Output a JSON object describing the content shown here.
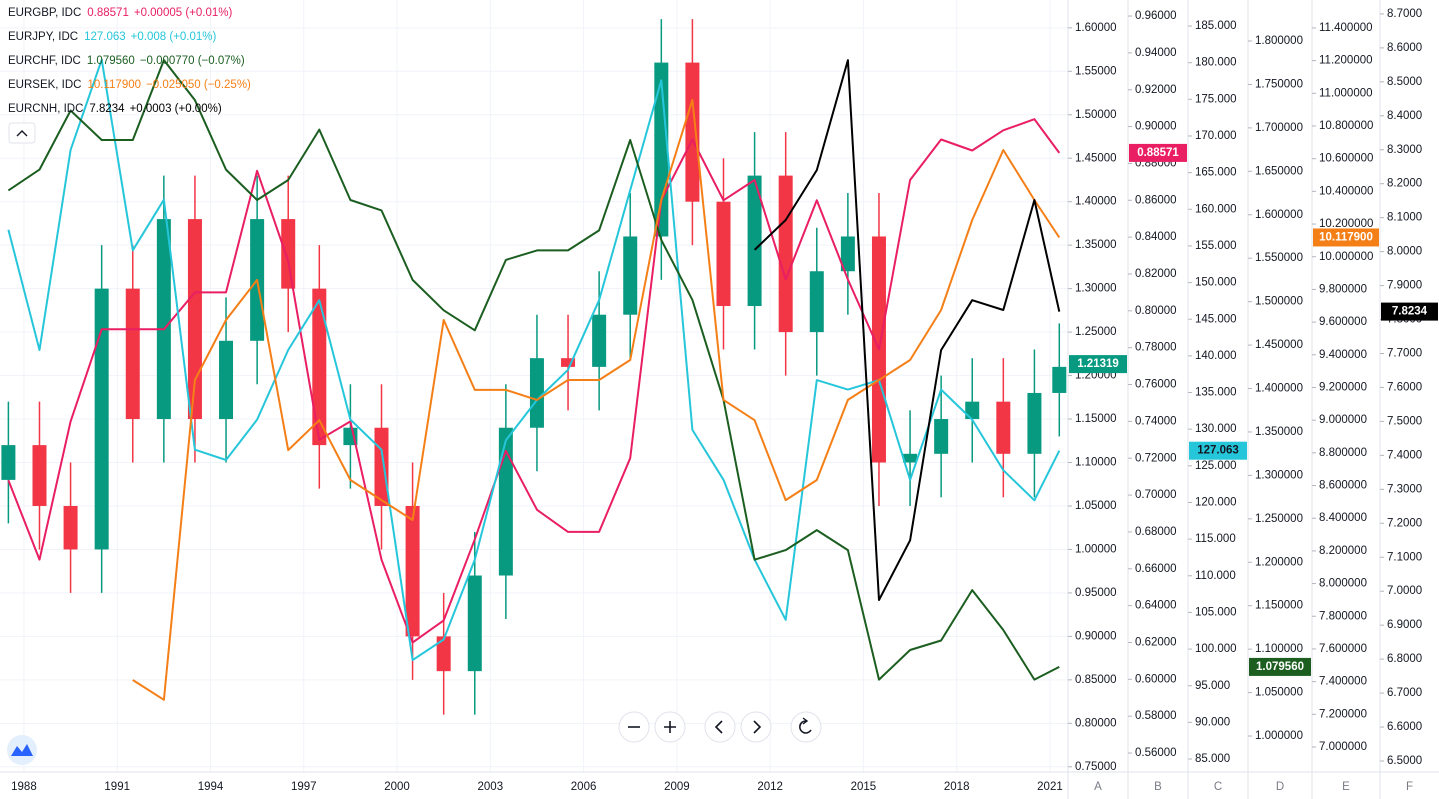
{
  "chart_data": {
    "type": "candlestick",
    "x": [
      1987.5,
      1988.5,
      1989.5,
      1990.5,
      1991.5,
      1992.5,
      1993.5,
      1994.5,
      1995.5,
      1996.5,
      1997.5,
      1998.5,
      1999.5,
      2000.5,
      2001.5,
      2002.5,
      2003.5,
      2004.5,
      2005.5,
      2006.5,
      2007.5,
      2008.5,
      2009.5,
      2010.5,
      2011.5,
      2012.5,
      2013.5,
      2014.5,
      2015.5,
      2016.5,
      2017.5,
      2018.5,
      2019.5,
      2020.5,
      2021.3
    ],
    "xlim": [
      1987.23,
      2021.58
    ],
    "xticks": [
      1988,
      1991,
      1994,
      1997,
      2000,
      2003,
      2006,
      2009,
      2012,
      2015,
      2018,
      2021
    ],
    "grid": true,
    "price": {
      "up_color": "#089981",
      "down_color": "#f23645",
      "axis_letter": "A",
      "open": [
        1.08,
        1.12,
        1.05,
        1,
        1.3,
        1.15,
        1.38,
        1.15,
        1.24,
        1.38,
        1.3,
        1.12,
        1.14,
        1.05,
        0.9,
        0.86,
        0.97,
        1.14,
        1.22,
        1.21,
        1.27,
        1.36,
        1.56,
        1.4,
        1.28,
        1.43,
        1.25,
        1.32,
        1.36,
        1.1,
        1.11,
        1.15,
        1.17,
        1.11,
        1.18
      ],
      "high": [
        1.17,
        1.17,
        1.1,
        1.35,
        1.35,
        1.43,
        1.43,
        1.29,
        1.43,
        1.43,
        1.35,
        1.19,
        1.19,
        1.1,
        0.95,
        1.02,
        1.19,
        1.27,
        1.27,
        1.32,
        1.41,
        1.61,
        1.61,
        1.45,
        1.48,
        1.48,
        1.37,
        1.41,
        1.41,
        1.16,
        1.2,
        1.22,
        1.22,
        1.23,
        1.26
      ],
      "low": [
        1.03,
        1,
        0.95,
        0.95,
        1.1,
        1.1,
        1.1,
        1.1,
        1.19,
        1.25,
        1.07,
        1.07,
        1,
        0.85,
        0.81,
        0.81,
        0.92,
        1.09,
        1.16,
        1.16,
        1.22,
        1.31,
        1.35,
        1.23,
        1.23,
        1.2,
        1.2,
        1.27,
        1.05,
        1.05,
        1.06,
        1.1,
        1.06,
        1.06,
        1.13
      ],
      "close": [
        1.12,
        1.05,
        1,
        1.3,
        1.15,
        1.38,
        1.15,
        1.24,
        1.38,
        1.3,
        1.12,
        1.14,
        1.05,
        0.9,
        0.86,
        0.97,
        1.14,
        1.22,
        1.21,
        1.27,
        1.36,
        1.56,
        1.4,
        1.28,
        1.43,
        1.25,
        1.32,
        1.36,
        1.1,
        1.11,
        1.15,
        1.17,
        1.11,
        1.18,
        1.21
      ],
      "last": 1.21319,
      "ylim": [
        0.744,
        1.632
      ],
      "yticks": [
        {
          "value": 0.75,
          "label": "0.75000"
        },
        {
          "value": 0.8,
          "label": "0.80000"
        },
        {
          "value": 0.85,
          "label": "0.85000"
        },
        {
          "value": 0.9,
          "label": "0.90000"
        },
        {
          "value": 0.95,
          "label": "0.95000"
        },
        {
          "value": 1,
          "label": "1.00000"
        },
        {
          "value": 1.05,
          "label": "1.05000"
        },
        {
          "value": 1.1,
          "label": "1.10000"
        },
        {
          "value": 1.15,
          "label": "1.15000"
        },
        {
          "value": 1.2,
          "label": "1.20000"
        },
        {
          "value": 1.25,
          "label": "1.25000"
        },
        {
          "value": 1.3,
          "label": "1.30000"
        },
        {
          "value": 1.35,
          "label": "1.35000"
        },
        {
          "value": 1.4,
          "label": "1.40000"
        },
        {
          "value": 1.45,
          "label": "1.45000"
        },
        {
          "value": 1.5,
          "label": "1.50000"
        },
        {
          "value": 1.55,
          "label": "1.55000"
        },
        {
          "value": 1.6,
          "label": "1.60000"
        }
      ]
    },
    "series": [
      {
        "name": "EURGBP, IDC",
        "color": "#e91e63",
        "axis_letter": "B",
        "change": "+0.00005 (+0.01%)",
        "last": 0.88571,
        "values": [
          0.708,
          0.665,
          0.74,
          0.79,
          0.79,
          0.79,
          0.81,
          0.81,
          0.876,
          0.827,
          0.73,
          0.74,
          0.665,
          0.62,
          0.632,
          0.676,
          0.724,
          0.692,
          0.68,
          0.68,
          0.72,
          0.86,
          0.893,
          0.86,
          0.871,
          0.817,
          0.86,
          0.817,
          0.779,
          0.871,
          0.893,
          0.887,
          0.898,
          0.904,
          0.88571
        ],
        "ylim": [
          0.5497,
          0.9687
        ],
        "yticks": [
          {
            "value": 0.56,
            "label": "0.56000"
          },
          {
            "value": 0.58,
            "label": "0.58000"
          },
          {
            "value": 0.6,
            "label": "0.60000"
          },
          {
            "value": 0.62,
            "label": "0.62000"
          },
          {
            "value": 0.64,
            "label": "0.64000"
          },
          {
            "value": 0.66,
            "label": "0.66000"
          },
          {
            "value": 0.68,
            "label": "0.68000"
          },
          {
            "value": 0.7,
            "label": "0.70000"
          },
          {
            "value": 0.72,
            "label": "0.72000"
          },
          {
            "value": 0.74,
            "label": "0.74000"
          },
          {
            "value": 0.76,
            "label": "0.76000"
          },
          {
            "value": 0.78,
            "label": "0.78000"
          },
          {
            "value": 0.8,
            "label": "0.80000"
          },
          {
            "value": 0.82,
            "label": "0.82000"
          },
          {
            "value": 0.84,
            "label": "0.84000"
          },
          {
            "value": 0.86,
            "label": "0.86000"
          },
          {
            "value": 0.88,
            "label": "0.88000"
          },
          {
            "value": 0.9,
            "label": "0.90000"
          },
          {
            "value": 0.92,
            "label": "0.92000"
          },
          {
            "value": 0.94,
            "label": "0.94000"
          },
          {
            "value": 0.96,
            "label": "0.96000"
          }
        ]
      },
      {
        "name": "EURJPY, IDC",
        "color": "#26c6da",
        "axis_letter": "C",
        "change": "+0.008 (+0.01%)",
        "last": 127.063,
        "values": [
          157.2,
          140.8,
          168.1,
          180.4,
          154.4,
          161.3,
          127.2,
          125.8,
          131.3,
          140.8,
          147.6,
          131.3,
          127.2,
          98.5,
          101.3,
          112.2,
          128.5,
          134,
          138.1,
          147.6,
          162.6,
          177.6,
          129.9,
          123.1,
          112.2,
          104,
          136.7,
          135.4,
          136.7,
          123.1,
          135.4,
          131.3,
          124.4,
          120.3,
          127.063
        ],
        "ylim": [
          83.23,
          188.55
        ],
        "yticks": [
          {
            "value": 85,
            "label": "85.000"
          },
          {
            "value": 90,
            "label": "90.000"
          },
          {
            "value": 95,
            "label": "95.000"
          },
          {
            "value": 100,
            "label": "100.000"
          },
          {
            "value": 105,
            "label": "105.000"
          },
          {
            "value": 110,
            "label": "110.000"
          },
          {
            "value": 115,
            "label": "115.000"
          },
          {
            "value": 120,
            "label": "120.000"
          },
          {
            "value": 125,
            "label": "125.000"
          },
          {
            "value": 130,
            "label": "130.000"
          },
          {
            "value": 135,
            "label": "135.000"
          },
          {
            "value": 140,
            "label": "140.000"
          },
          {
            "value": 145,
            "label": "145.000"
          },
          {
            "value": 150,
            "label": "150.000"
          },
          {
            "value": 155,
            "label": "155.000"
          },
          {
            "value": 160,
            "label": "160.000"
          },
          {
            "value": 165,
            "label": "165.000"
          },
          {
            "value": 170,
            "label": "170.000"
          },
          {
            "value": 175,
            "label": "175.000"
          },
          {
            "value": 180,
            "label": "180.000"
          },
          {
            "value": 185,
            "label": "185.000"
          }
        ]
      },
      {
        "name": "EURCHF, IDC",
        "color": "#1b5e20",
        "axis_letter": "D",
        "change": "−0.000770 (−0.07%)",
        "last": {
          "value": 1.07956,
          "label": "1.079560"
        },
        "values": [
          1.628,
          1.652,
          1.72,
          1.686,
          1.686,
          1.778,
          1.732,
          1.652,
          1.617,
          1.64,
          1.698,
          1.617,
          1.605,
          1.525,
          1.49,
          1.467,
          1.548,
          1.559,
          1.559,
          1.582,
          1.686,
          1.571,
          1.502,
          1.387,
          1.203,
          1.214,
          1.237,
          1.214,
          1.065,
          1.099,
          1.11,
          1.168,
          1.122,
          1.065,
          1.07956
        ],
        "ylim": [
          0.9586,
          1.8472
        ],
        "yticks": [
          {
            "value": 1,
            "label": "1.000000"
          },
          {
            "value": 1.05,
            "label": "1.050000"
          },
          {
            "value": 1.1,
            "label": "1.100000"
          },
          {
            "value": 1.15,
            "label": "1.150000"
          },
          {
            "value": 1.2,
            "label": "1.200000"
          },
          {
            "value": 1.25,
            "label": "1.250000"
          },
          {
            "value": 1.3,
            "label": "1.300000"
          },
          {
            "value": 1.35,
            "label": "1.350000"
          },
          {
            "value": 1.4,
            "label": "1.400000"
          },
          {
            "value": 1.45,
            "label": "1.450000"
          },
          {
            "value": 1.5,
            "label": "1.500000"
          },
          {
            "value": 1.55,
            "label": "1.550000"
          },
          {
            "value": 1.6,
            "label": "1.600000"
          },
          {
            "value": 1.65,
            "label": "1.650000"
          },
          {
            "value": 1.7,
            "label": "1.700000"
          },
          {
            "value": 1.75,
            "label": "1.750000"
          },
          {
            "value": 1.8,
            "label": "1.800000"
          }
        ]
      },
      {
        "name": "EURSEK, IDC",
        "color": "#f57f17",
        "axis_letter": "E",
        "change": "−0.025050 (−0.25%)",
        "last": {
          "value": 10.1179,
          "label": "10.117900"
        },
        "values": [
          null,
          null,
          null,
          null,
          7.41,
          7.289,
          9.246,
          9.613,
          9.858,
          8.817,
          9.0,
          8.634,
          8.511,
          8.389,
          9.613,
          9.185,
          9.185,
          9.124,
          9.246,
          9.246,
          9.368,
          10.347,
          10.96,
          9.124,
          9.0,
          8.511,
          8.634,
          9.124,
          9.246,
          9.368,
          9.674,
          10.225,
          10.653,
          10.347,
          10.1179
        ],
        "ylim": [
          6.847,
          11.571
        ],
        "yticks": [
          {
            "value": 7,
            "label": "7.000000"
          },
          {
            "value": 7.2,
            "label": "7.200000"
          },
          {
            "value": 7.4,
            "label": "7.400000"
          },
          {
            "value": 7.6,
            "label": "7.600000"
          },
          {
            "value": 7.8,
            "label": "7.800000"
          },
          {
            "value": 8,
            "label": "8.000000"
          },
          {
            "value": 8.2,
            "label": "8.200000"
          },
          {
            "value": 8.4,
            "label": "8.400000"
          },
          {
            "value": 8.6,
            "label": "8.600000"
          },
          {
            "value": 8.8,
            "label": "8.800000"
          },
          {
            "value": 9,
            "label": "9.000000"
          },
          {
            "value": 9.2,
            "label": "9.200000"
          },
          {
            "value": 9.4,
            "label": "9.400000"
          },
          {
            "value": 9.6,
            "label": "9.600000"
          },
          {
            "value": 9.8,
            "label": "9.800000"
          },
          {
            "value": 10,
            "label": "10.000000"
          },
          {
            "value": 10.2,
            "label": "10.200000"
          },
          {
            "value": 10.4,
            "label": "10.400000"
          },
          {
            "value": 10.6,
            "label": "10.600000"
          },
          {
            "value": 10.8,
            "label": "10.800000"
          },
          {
            "value": 11,
            "label": "11.000000"
          },
          {
            "value": 11.2,
            "label": "11.200000"
          },
          {
            "value": 11.4,
            "label": "11.400000"
          }
        ]
      },
      {
        "name": "EURCNH, IDC",
        "color": "#000000",
        "axis_letter": "F",
        "change": "+0.0003 (+0.00%)",
        "last": 7.8234,
        "values": [
          null,
          null,
          null,
          null,
          null,
          null,
          null,
          null,
          null,
          null,
          null,
          null,
          null,
          null,
          null,
          null,
          null,
          null,
          null,
          null,
          null,
          null,
          null,
          null,
          8.005,
          8.093,
          8.24,
          8.564,
          6.974,
          7.15,
          7.71,
          7.857,
          7.828,
          8.152,
          7.8234
        ],
        "ylim": [
          6.4676,
          8.741
        ],
        "yticks": [
          {
            "value": 6.5,
            "label": "6.5000"
          },
          {
            "value": 6.6,
            "label": "6.6000"
          },
          {
            "value": 6.7,
            "label": "6.7000"
          },
          {
            "value": 6.8,
            "label": "6.8000"
          },
          {
            "value": 6.9,
            "label": "6.9000"
          },
          {
            "value": 7,
            "label": "7.0000"
          },
          {
            "value": 7.1,
            "label": "7.1000"
          },
          {
            "value": 7.2,
            "label": "7.2000"
          },
          {
            "value": 7.3,
            "label": "7.3000"
          },
          {
            "value": 7.4,
            "label": "7.4000"
          },
          {
            "value": 7.5,
            "label": "7.5000"
          },
          {
            "value": 7.6,
            "label": "7.6000"
          },
          {
            "value": 7.7,
            "label": "7.7000"
          },
          {
            "value": 7.8,
            "label": "7.8000"
          },
          {
            "value": 7.9,
            "label": "7.9000"
          },
          {
            "value": 8,
            "label": "8.0000"
          },
          {
            "value": 8.1,
            "label": "8.1000"
          },
          {
            "value": 8.2,
            "label": "8.2000"
          },
          {
            "value": 8.3,
            "label": "8.3000"
          },
          {
            "value": 8.4,
            "label": "8.4000"
          },
          {
            "value": 8.5,
            "label": "8.5000"
          },
          {
            "value": 8.6,
            "label": "8.6000"
          },
          {
            "value": 8.7,
            "label": "8.7000"
          }
        ]
      }
    ]
  }
}
